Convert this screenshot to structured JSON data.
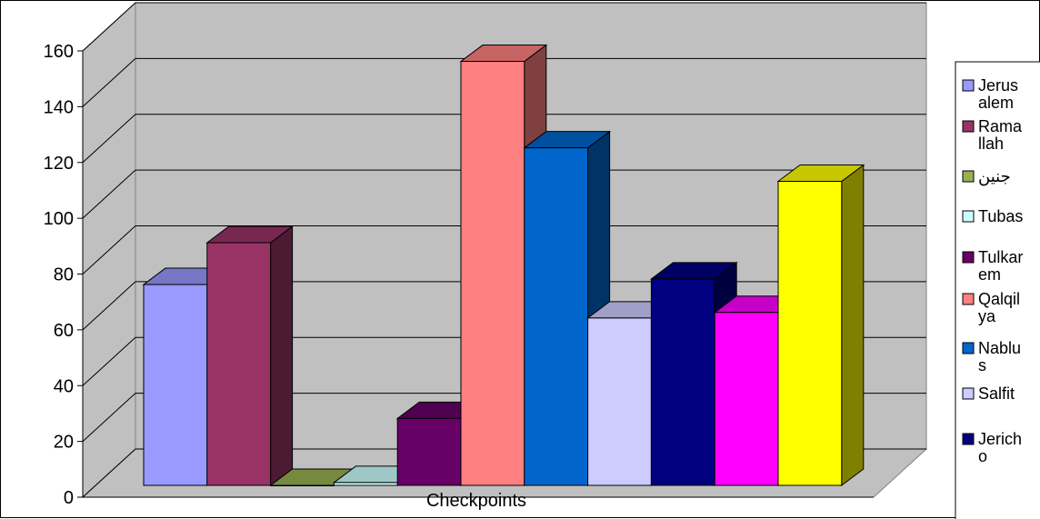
{
  "chart_data": {
    "type": "bar",
    "title": "",
    "xlabel": "Checkpoints",
    "ylabel": "",
    "ylim": [
      0,
      160
    ],
    "yticks": [
      0,
      20,
      40,
      60,
      80,
      100,
      120,
      140,
      160
    ],
    "grid": true,
    "legend_position": "right",
    "three_d": true,
    "background_color": "#c0c0c0",
    "series": [
      {
        "name": "Jerusalem",
        "legend_lines": [
          "Jerus",
          "alem"
        ],
        "value": 72,
        "color": "#9999ff"
      },
      {
        "name": "Ramallah",
        "legend_lines": [
          "Rama",
          "llah"
        ],
        "value": 87,
        "color": "#993366"
      },
      {
        "name": "جنين",
        "legend_lines": [
          "جنين"
        ],
        "value": 0,
        "color": "#99b050"
      },
      {
        "name": "Tubas",
        "legend_lines": [
          "Tubas"
        ],
        "value": 1,
        "color": "#ccffff"
      },
      {
        "name": "Tulkarem",
        "legend_lines": [
          "Tulkar",
          "em"
        ],
        "value": 24,
        "color": "#660066"
      },
      {
        "name": "Qalqilya",
        "legend_lines": [
          "Qalqil",
          "ya"
        ],
        "value": 152,
        "color": "#ff8080"
      },
      {
        "name": "Nablus",
        "legend_lines": [
          "Nablu",
          "s"
        ],
        "value": 121,
        "color": "#0066cc"
      },
      {
        "name": "Salfit",
        "legend_lines": [
          "Salfit"
        ],
        "value": 60,
        "color": "#ccccff"
      },
      {
        "name": "Jericho",
        "legend_lines": [
          "Jerich",
          "o"
        ],
        "value": 74,
        "color": "#000080"
      },
      {
        "value": 62,
        "color": "#ff00ff"
      },
      {
        "value": 109,
        "color": "#ffff00"
      }
    ]
  }
}
